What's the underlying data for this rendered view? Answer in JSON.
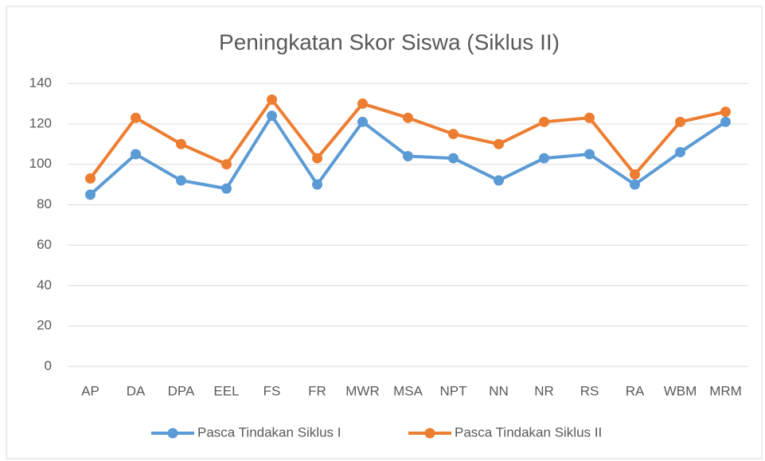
{
  "chart_data": {
    "type": "line",
    "title": "Peningkatan Skor Siswa  (Siklus II)",
    "categories": [
      "AP",
      "DA",
      "DPA",
      "EEL",
      "FS",
      "FR",
      "MWR",
      "MSA",
      "NPT",
      "NN",
      "NR",
      "RS",
      "RA",
      "WBM",
      "MRM"
    ],
    "series": [
      {
        "name": "Pasca Tindakan Siklus I",
        "color": "#5b9bd5",
        "values": [
          85,
          105,
          92,
          88,
          124,
          90,
          121,
          104,
          103,
          92,
          103,
          105,
          90,
          106,
          121
        ]
      },
      {
        "name": "Pasca Tindakan Siklus II",
        "color": "#ed7d31",
        "values": [
          93,
          123,
          110,
          100,
          132,
          103,
          130,
          123,
          115,
          110,
          121,
          123,
          95,
          121,
          126
        ]
      }
    ],
    "ylim": [
      0,
      140
    ],
    "yticks": [
      0,
      20,
      40,
      60,
      80,
      100,
      120,
      140
    ],
    "grid": true,
    "legend": "bottom"
  }
}
